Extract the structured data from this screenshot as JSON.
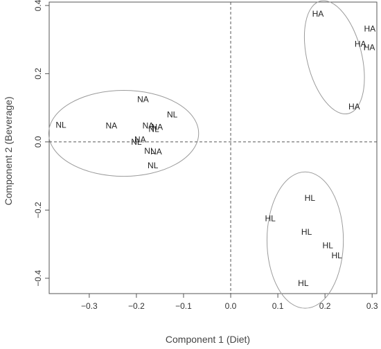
{
  "chart_data": {
    "type": "scatter",
    "title": "",
    "xlabel": "Component 1 (Diet)",
    "ylabel": "Component 2 (Beverage)",
    "xlim": [
      -0.385,
      0.31
    ],
    "ylim": [
      -0.445,
      0.41
    ],
    "xticks": [
      -0.3,
      -0.2,
      -0.1,
      0.0,
      0.1,
      0.2,
      0.3
    ],
    "yticks": [
      -0.4,
      -0.2,
      0.0,
      0.2,
      0.4
    ],
    "xtick_labels": [
      "−0.3",
      "−0.2",
      "−0.1",
      "0.0",
      "0.1",
      "0.2",
      "0.3"
    ],
    "ytick_labels": [
      "−0.4",
      "−0.2",
      "0.0",
      "0.2",
      "0.4"
    ],
    "reference_lines": {
      "x": 0,
      "y": 0,
      "style": "dashed"
    },
    "grid": false,
    "points": [
      {
        "label": "HA",
        "x": 0.185,
        "y": 0.375
      },
      {
        "label": "HA",
        "x": 0.295,
        "y": 0.332
      },
      {
        "label": "HA",
        "x": 0.275,
        "y": 0.287
      },
      {
        "label": "HA",
        "x": 0.294,
        "y": 0.277
      },
      {
        "label": "HA",
        "x": 0.262,
        "y": 0.103
      },
      {
        "label": "NA",
        "x": -0.186,
        "y": 0.125
      },
      {
        "label": "NL",
        "x": -0.124,
        "y": 0.08
      },
      {
        "label": "NL",
        "x": -0.36,
        "y": 0.05
      },
      {
        "label": "NA",
        "x": -0.253,
        "y": 0.047
      },
      {
        "label": "NA",
        "x": -0.175,
        "y": 0.047
      },
      {
        "label": "NA",
        "x": -0.156,
        "y": 0.043
      },
      {
        "label": "NL",
        "x": -0.163,
        "y": 0.037
      },
      {
        "label": "NA",
        "x": -0.192,
        "y": 0.007
      },
      {
        "label": "NL",
        "x": -0.2,
        "y": 0.0
      },
      {
        "label": "NL",
        "x": -0.172,
        "y": -0.027
      },
      {
        "label": "NA",
        "x": -0.158,
        "y": -0.029
      },
      {
        "label": "NL",
        "x": -0.165,
        "y": -0.069
      },
      {
        "label": "HL",
        "x": 0.168,
        "y": -0.165
      },
      {
        "label": "HL",
        "x": 0.084,
        "y": -0.225
      },
      {
        "label": "HL",
        "x": 0.161,
        "y": -0.264
      },
      {
        "label": "HL",
        "x": 0.206,
        "y": -0.304
      },
      {
        "label": "HL",
        "x": 0.225,
        "y": -0.333
      },
      {
        "label": "HL",
        "x": 0.154,
        "y": -0.415
      }
    ],
    "ellipses": [
      {
        "group": "HA",
        "cx": 0.22,
        "cy": 0.248,
        "rx": 0.058,
        "ry": 0.17,
        "angle_deg": -14
      },
      {
        "group": "N",
        "cx": -0.227,
        "cy": 0.025,
        "rx": 0.159,
        "ry": 0.126,
        "angle_deg": 0
      },
      {
        "group": "HL",
        "cx": 0.158,
        "cy": -0.288,
        "rx": 0.081,
        "ry": 0.2,
        "angle_deg": 0
      }
    ],
    "colors": {
      "points": "#222222",
      "ellipses": "#9a9a9a",
      "reference_lines": "#555555",
      "axes": "#555555"
    }
  }
}
